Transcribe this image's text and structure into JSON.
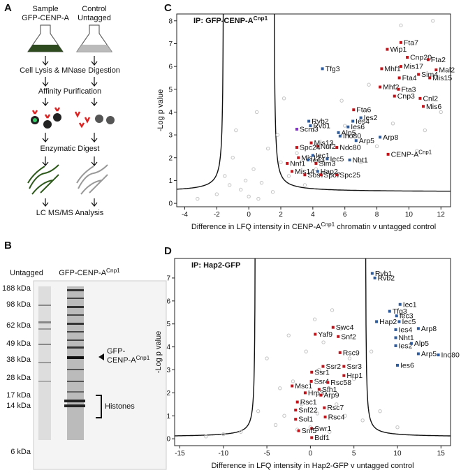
{
  "panel_a": {
    "letter": "A",
    "sample": [
      "Sample",
      "GFP-CENP-A"
    ],
    "control": [
      "Control",
      "Untagged"
    ],
    "steps": [
      "Cell Lysis & MNase Digestion",
      "Affinity Purification",
      "Enzymatic Digest",
      "LC MS/MS Analysis"
    ]
  },
  "panel_b": {
    "letter": "B",
    "lane_untagged": "Untagged",
    "lane_gfp": [
      "GFP-CENP-A",
      "Cnp1"
    ],
    "markers": [
      "188 kDa",
      "98 kDa",
      "62 kDa",
      "49 kDa",
      "38 kDa",
      "28 kDa",
      "17 kDa",
      "14 kDa",
      "6 kDa"
    ],
    "band_line1": "GFP-",
    "band_line2": [
      "CENP-A",
      "Cnp1"
    ],
    "histones": "Histones"
  },
  "chart_letters": [
    "C",
    "D"
  ],
  "chart_data": [
    {
      "type": "scatter",
      "title": [
        "IP: GFP-CENP-A",
        "Cnp1"
      ],
      "x_label": [
        "Difference in LFQ intensity in CENP-A",
        "Cnp1",
        " chromatin v untagged control"
      ],
      "y_label": "-Log p value",
      "xlim": [
        -4.5,
        12.6
      ],
      "ylim": [
        -0.15,
        8.3
      ],
      "xticks": [
        -4,
        -2,
        0,
        2,
        4,
        6,
        8,
        10,
        12
      ],
      "yticks": [
        0,
        1,
        2,
        3,
        4,
        5,
        6,
        7,
        8
      ],
      "series": [
        {
          "color": "#c4c4c4",
          "marker": "circle-open",
          "x": [
            -1.5,
            -1,
            -0.5,
            0,
            0.3,
            0.8,
            1.2,
            -2,
            -3.2,
            1.8,
            2.5,
            3,
            3.5,
            4.2,
            5,
            5.8,
            7,
            7.5,
            9,
            11,
            11.5,
            9.5,
            -0.8,
            0.5,
            2.2,
            -0.2,
            0.6,
            -1.2,
            1.5,
            2,
            4,
            6,
            8,
            12,
            10.5
          ],
          "values": [
            1.2,
            2.0,
            0.6,
            0.3,
            1.5,
            0.9,
            2.4,
            0.4,
            0.2,
            3.0,
            1.2,
            2.2,
            0.8,
            1.5,
            2.5,
            4.5,
            1.8,
            5.2,
            3.5,
            3.2,
            8.0,
            7.8,
            3.2,
            4.0,
            4.6,
            1.0,
            0.2,
            0.8,
            0.5,
            1.8,
            3.2,
            3.4,
            2.5,
            4.0,
            2.3
          ]
        },
        {
          "color": "#c0141a",
          "marker": "square",
          "labels": [
            "Wip1",
            "Fta7",
            "Cnp20",
            "Fta2",
            "Mal2",
            "Mhf1",
            "Mis17",
            "Fta4",
            "Sim4",
            "Mis15",
            "Mhf2",
            "Fta3",
            "Cnp3",
            "Cnl2",
            "Mis6",
            "Fta6",
            "Mis13",
            "Nuf2",
            "Spc24",
            "Ndc80",
            [
              "CENP-A",
              "Cnp1"
            ],
            "Mis12",
            "Nnf1",
            "Sim3",
            "Mis14",
            "Sos7",
            "Spc7",
            "Spc25"
          ],
          "x": [
            8.65,
            9.5,
            9.9,
            11.2,
            11.7,
            8.3,
            9.5,
            9.4,
            10.6,
            11.3,
            8.2,
            9.35,
            9.1,
            10.7,
            10.9,
            6.55,
            3.9,
            4.3,
            3.0,
            5.5,
            8.7,
            3.1,
            2.4,
            4.2,
            2.7,
            3.5,
            4.5,
            5.5
          ],
          "values": [
            6.75,
            7.05,
            6.4,
            6.3,
            5.85,
            5.9,
            6.0,
            5.5,
            5.65,
            5.5,
            5.1,
            5.0,
            4.7,
            4.6,
            4.25,
            4.1,
            2.65,
            2.5,
            2.45,
            2.45,
            2.15,
            2.0,
            1.75,
            1.75,
            1.4,
            1.25,
            1.25,
            1.25
          ]
        },
        {
          "color": "#2f5c9c",
          "marker": "square",
          "labels": [
            "Tfg3",
            "Ies2",
            "Rvb2",
            "Rvb1",
            "Ies4",
            "Ies6",
            "Alp5",
            "Ino80",
            "Arp5",
            "Arp8",
            "Iec1",
            "Iec3",
            "Iec5",
            "Nht1",
            "Hap2"
          ],
          "x": [
            4.6,
            7.0,
            3.75,
            3.85,
            6.5,
            6.2,
            5.6,
            5.7,
            6.7,
            8.2,
            4.0,
            3.7,
            4.9,
            6.3,
            4.3
          ],
          "values": [
            5.9,
            3.75,
            3.6,
            3.4,
            3.6,
            3.35,
            3.1,
            2.95,
            2.75,
            2.9,
            2.1,
            1.9,
            1.95,
            1.9,
            1.4
          ]
        },
        {
          "color": "#8230c8",
          "marker": "square",
          "labels": [
            "Scm3"
          ],
          "x": [
            3.0
          ],
          "values": [
            3.25
          ]
        }
      ]
    },
    {
      "type": "scatter",
      "title": "IP: Hap2-GFP",
      "x_label": "Difference in LFQ intensity in Hap2-GFP v untagged control",
      "y_label": "-Log p value",
      "xlim": [
        -15.6,
        16.1
      ],
      "ylim": [
        -0.3,
        7.85
      ],
      "xticks": [
        -15,
        -10,
        -5,
        0,
        5,
        10,
        15
      ],
      "yticks": [
        0,
        1,
        2,
        3,
        4,
        5,
        6,
        7
      ],
      "series": [
        {
          "color": "#c4c4c4",
          "marker": "circle-open",
          "x": [
            -3,
            -2,
            -1,
            0,
            1,
            2,
            3,
            -4,
            -5,
            -6,
            -8,
            -10,
            -12,
            4,
            5,
            6,
            7,
            -0.5,
            0.5,
            1.5,
            2.5,
            3.5,
            -2.5,
            4.5,
            8,
            10,
            -1.5,
            0.8,
            2.2,
            -3.5
          ],
          "values": [
            1,
            2.5,
            1.5,
            0.5,
            3,
            2,
            1.5,
            0.6,
            3.5,
            1.2,
            0.3,
            0.2,
            0.1,
            1,
            2.6,
            0.8,
            3.8,
            3.8,
            5.2,
            4.2,
            5.6,
            4.8,
            4.5,
            3.5,
            1.2,
            0.5,
            0.4,
            1.1,
            0.3,
            2.2
          ]
        },
        {
          "color": "#c0141a",
          "marker": "square",
          "labels": [
            "Swc4",
            "Yaf9",
            "Snf2",
            "Rsc9",
            "Ssr2",
            "Ssr3",
            "Ssr1",
            "Hrp1",
            "Ssr4",
            "Rsc58",
            "Msc1",
            "Sfh1",
            "Hrp3",
            "Arp9",
            "Rsc1",
            "Rsc7",
            "Snf22",
            "Rsc4",
            "Sol1",
            "Swr1",
            "Snf5",
            "Bdf1"
          ],
          "x": [
            2.6,
            0.55,
            3.2,
            3.4,
            1.45,
            3.85,
            0.15,
            3.85,
            0.1,
            2.0,
            -2.1,
            1.0,
            -0.6,
            1.2,
            -1.5,
            1.6,
            -1.7,
            1.7,
            -1.7,
            0.15,
            -1.35,
            0.15
          ],
          "values": [
            4.85,
            4.55,
            4.45,
            3.75,
            3.15,
            3.15,
            2.9,
            2.75,
            2.5,
            2.45,
            2.3,
            2.15,
            2.0,
            1.9,
            1.6,
            1.35,
            1.25,
            0.95,
            0.85,
            0.45,
            0.35,
            0.05
          ]
        },
        {
          "color": "#2f5c9c",
          "marker": "square",
          "labels": [
            "Rvb1",
            "Rvb2",
            "Iec1",
            "Tfg3",
            "Iec3",
            "Hap2",
            "Iec5",
            "Ies4",
            "Arp8",
            "Nht1",
            "Ies2",
            "Alp5",
            "Arp5",
            "Ino80",
            "Ies6"
          ],
          "x": [
            7.1,
            7.4,
            10.3,
            9.1,
            9.9,
            7.6,
            10.2,
            9.8,
            12.4,
            9.8,
            9.8,
            11.6,
            12.4,
            14.7,
            10.0
          ],
          "values": [
            7.2,
            7.0,
            5.85,
            5.55,
            5.35,
            5.1,
            5.1,
            4.75,
            4.8,
            4.4,
            4.05,
            4.15,
            3.7,
            3.65,
            3.2
          ]
        }
      ]
    }
  ]
}
